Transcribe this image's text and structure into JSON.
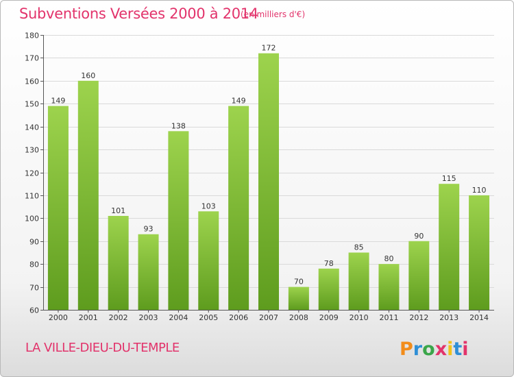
{
  "header": {
    "title": "Subventions Versées 2000 à 2014",
    "unit": "(en milliers d'€)"
  },
  "footer": {
    "commune": "LA VILLE-DIEU-DU-TEMPLE",
    "logo_text": "Proxiti"
  },
  "colors": {
    "title": "#e2336b",
    "bar_light": "#9dd34d",
    "bar_dark": "#5e9c1e",
    "grid": "#d9d9d9"
  },
  "chart_data": {
    "type": "bar",
    "title": "Subventions Versées 2000 à 2014",
    "xlabel": "",
    "ylabel": "",
    "categories": [
      "2000",
      "2001",
      "2002",
      "2003",
      "2004",
      "2005",
      "2006",
      "2007",
      "2008",
      "2009",
      "2010",
      "2011",
      "2012",
      "2013",
      "2014"
    ],
    "values": [
      149,
      160,
      101,
      93,
      138,
      103,
      149,
      172,
      70,
      78,
      85,
      80,
      90,
      115,
      110
    ],
    "ylim": [
      60,
      180
    ],
    "yticks": [
      60,
      70,
      80,
      90,
      100,
      110,
      120,
      130,
      140,
      150,
      160,
      170,
      180
    ],
    "grid": true
  }
}
